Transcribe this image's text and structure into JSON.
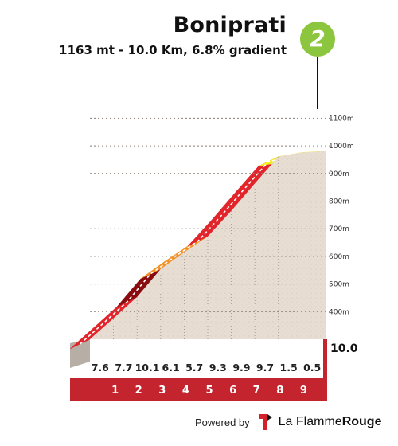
{
  "header": {
    "title": "Boniprati",
    "subtitle": "1163 mt - 10.0 Km, 6.8% gradient",
    "badge": "2"
  },
  "footer": {
    "powered": "Powered by",
    "brand_light": "La Flamme",
    "brand_bold": "Rouge"
  },
  "chart_data": {
    "type": "area",
    "title": "Boniprati",
    "subtitle": "1163 mt - 10.0 Km, 6.8% gradient",
    "x_unit": "km",
    "y_unit": "m",
    "ylim": [
      300,
      1163
    ],
    "y_ticks": [
      "400m",
      "500m",
      "600m",
      "700m",
      "800m",
      "900m",
      "1000m",
      "1100m"
    ],
    "x_ticks": [
      "1",
      "2",
      "3",
      "4",
      "5",
      "6",
      "7",
      "8",
      "9"
    ],
    "total_label": "10.0",
    "segments": [
      {
        "km": 1,
        "gradient": "7.6",
        "color": "#e2242b"
      },
      {
        "km": 2,
        "gradient": "7.7",
        "color": "#e2242b"
      },
      {
        "km": 3,
        "gradient": "10.1",
        "color": "#8a0b0e"
      },
      {
        "km": 4,
        "gradient": "6.1",
        "color": "#f29227"
      },
      {
        "km": 5,
        "gradient": "5.7",
        "color": "#f29227"
      },
      {
        "km": 6,
        "gradient": "9.3",
        "color": "#e2242b"
      },
      {
        "km": 7,
        "gradient": "9.9",
        "color": "#e2242b"
      },
      {
        "km": 8,
        "gradient": "9.7",
        "color": "#e2242b"
      },
      {
        "km": 9,
        "gradient": "1.5",
        "color": "#f4ec25"
      },
      {
        "km": 10,
        "gradient": "0.5",
        "color": "#f4ec25"
      }
    ],
    "colors": {
      "profile_fill": "#e7ddd2",
      "side_wall": "#b7afa6",
      "base_band": "#c4242e",
      "base_text": "#ffffff"
    }
  }
}
